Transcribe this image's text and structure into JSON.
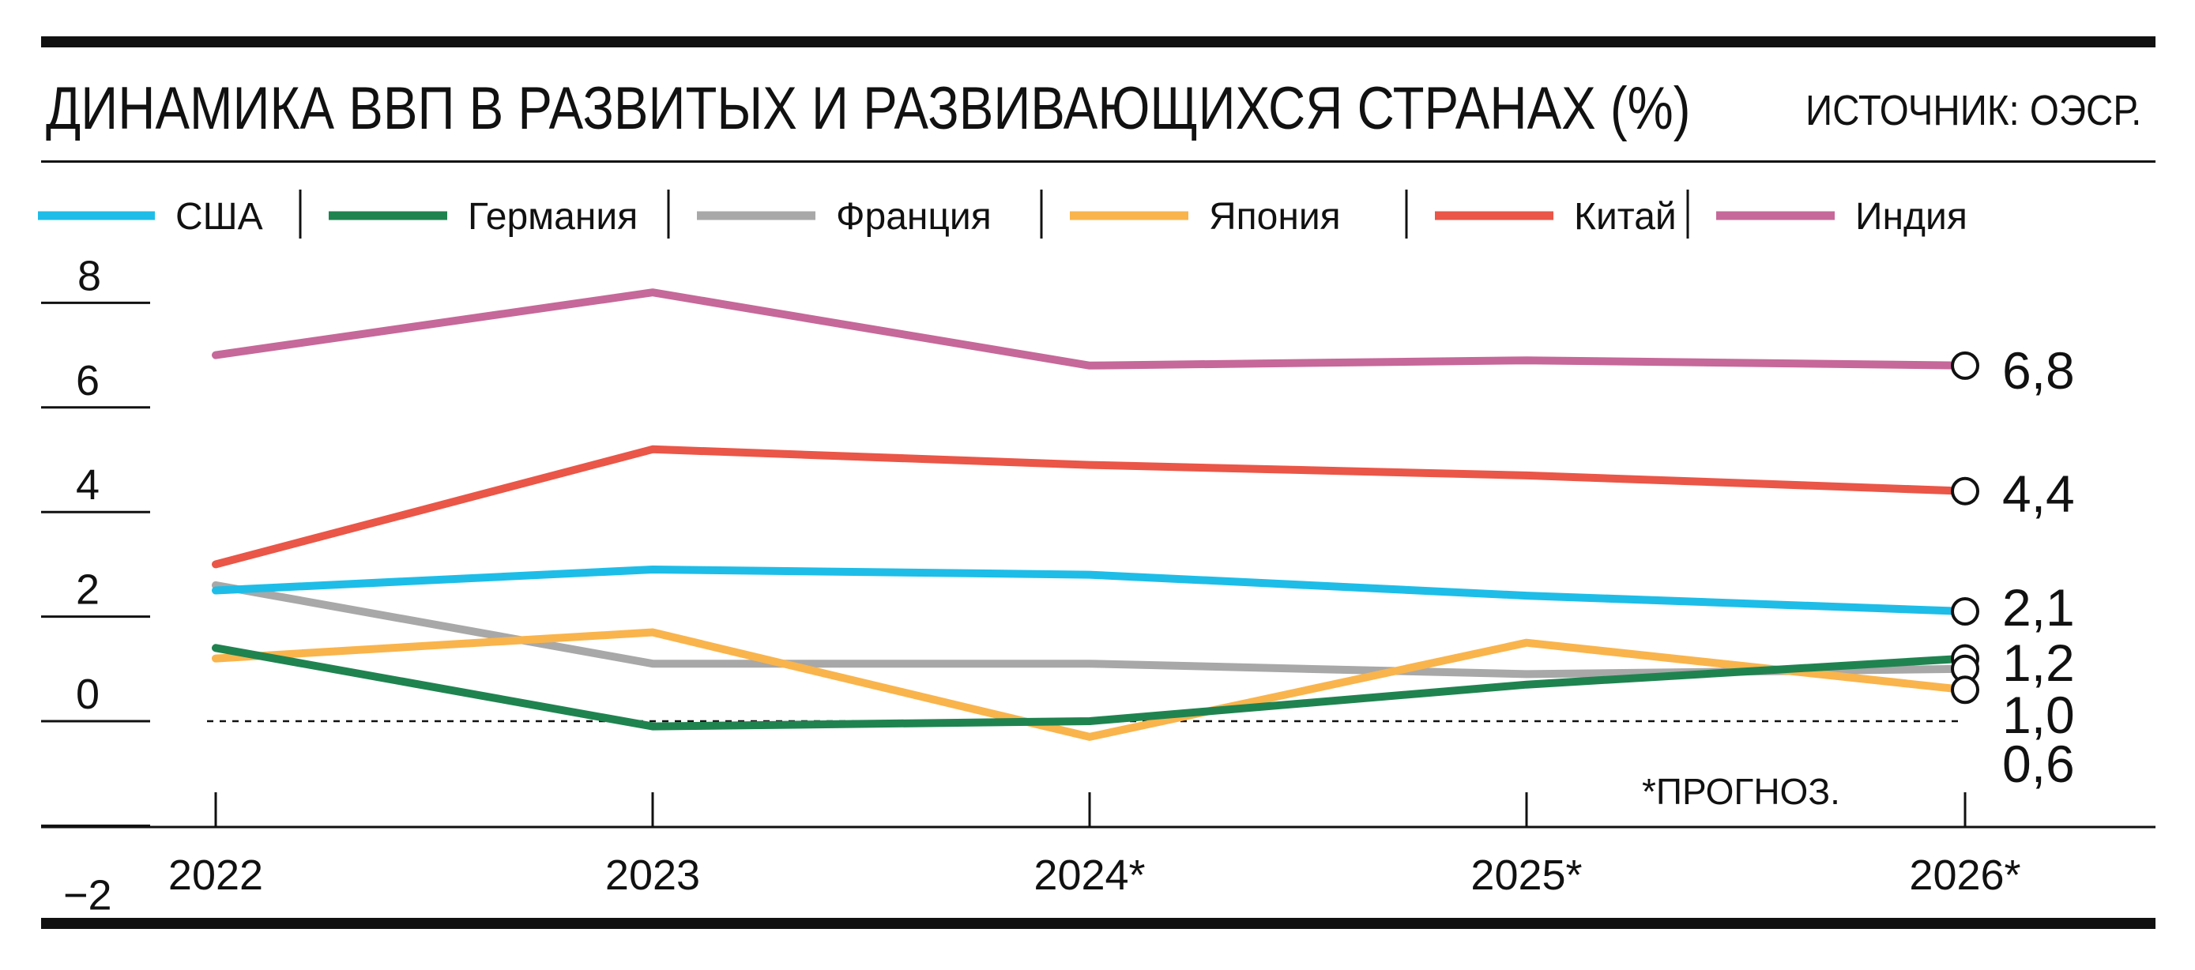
{
  "header": {
    "title": "ДИНАМИКА ВВП В РАЗВИТЫХ И РАЗВИВАЮЩИХСЯ СТРАНАХ (%)",
    "source": "ИСТОЧНИК: ОЭСР."
  },
  "chart_data": {
    "type": "line",
    "title": "ДИНАМИКА ВВП В РАЗВИТЫХ И РАЗВИВАЮЩИХСЯ СТРАНАХ (%)",
    "xlabel": "",
    "ylabel": "",
    "categories": [
      "2022",
      "2023",
      "2024*",
      "2025*",
      "2026*"
    ],
    "ylim": [
      -2,
      8
    ],
    "yticks": [
      8,
      6,
      4,
      2,
      0,
      -2
    ],
    "ytick_labels": [
      "8",
      "6",
      "4",
      "2",
      "0",
      "−2"
    ],
    "grid": false,
    "legend_position": "top",
    "zero_line": "dashed",
    "footnote": "*ПРОГНОЗ.",
    "series": [
      {
        "name": "США",
        "color": "#1ebde8",
        "values": [
          2.5,
          2.9,
          2.8,
          2.4,
          2.1
        ]
      },
      {
        "name": "Германия",
        "color": "#1f8350",
        "values": [
          1.4,
          -0.1,
          0.0,
          0.7,
          1.2
        ]
      },
      {
        "name": "Франция",
        "color": "#a8a8a8",
        "values": [
          2.6,
          1.1,
          1.1,
          0.9,
          1.0
        ]
      },
      {
        "name": "Япония",
        "color": "#f9b44c",
        "values": [
          1.2,
          1.7,
          -0.3,
          1.5,
          0.6
        ]
      },
      {
        "name": "Китай",
        "color": "#ea5647",
        "values": [
          3.0,
          5.2,
          4.9,
          4.7,
          4.4
        ]
      },
      {
        "name": "Индия",
        "color": "#c66899",
        "values": [
          7.0,
          8.2,
          6.8,
          6.9,
          6.8
        ]
      }
    ],
    "end_labels": [
      "6,8",
      "4,4",
      "2,1",
      "1,2",
      "1,0",
      "0,6"
    ]
  }
}
